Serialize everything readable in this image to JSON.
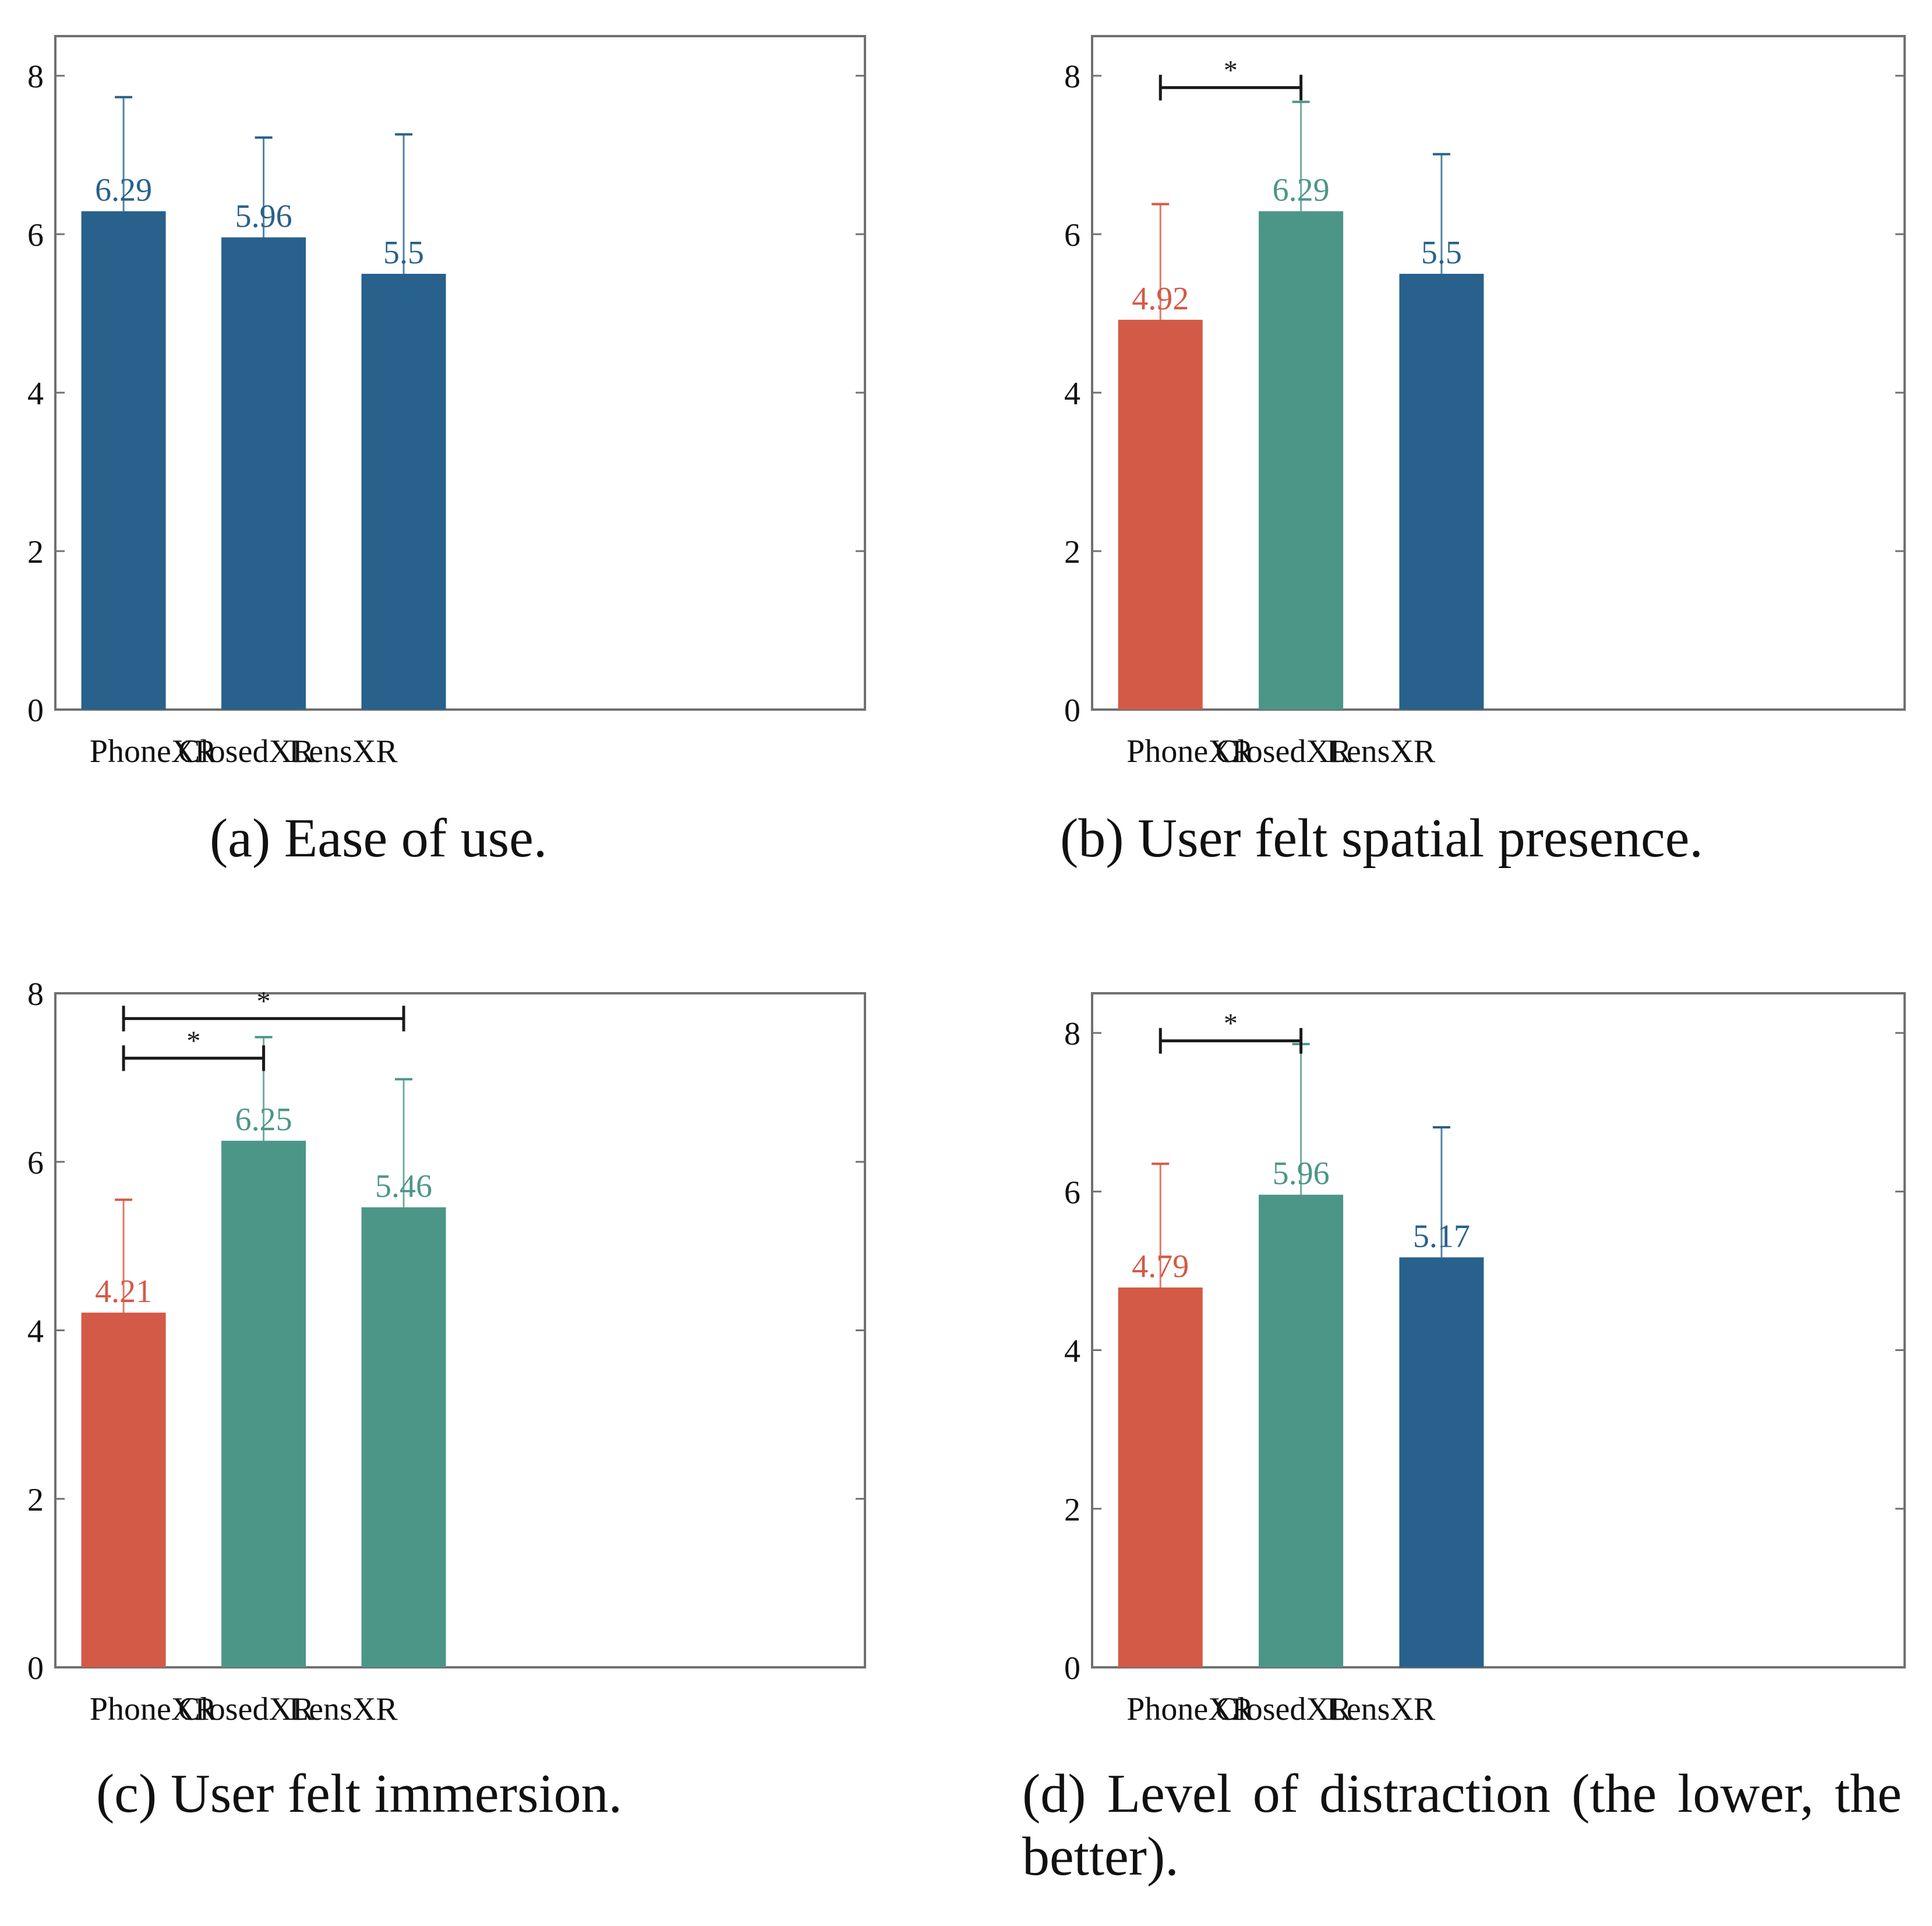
{
  "colors": {
    "phone": "#d35a46",
    "closed": "#4c9688",
    "lens": "#28618c",
    "axis": "#707070",
    "text": "#111111",
    "bracket": "#1a1a1a"
  },
  "chart_data": [
    {
      "id": "a",
      "type": "bar",
      "caption": "(a) Ease of use.",
      "categories": [
        "PhoneXR",
        "ClosedXR",
        "LensXR"
      ],
      "values": [
        6.29,
        5.96,
        5.5
      ],
      "labels": [
        "6.29",
        "5.96",
        "5.5"
      ],
      "errors_upper": [
        7.73,
        7.22,
        7.26
      ],
      "colors": [
        "lens",
        "lens",
        "lens"
      ],
      "ylim": [
        0,
        8.5
      ],
      "yticks": [
        0,
        2,
        4,
        6,
        8
      ],
      "ytick_labels": [
        "0",
        "2",
        "4",
        "6",
        "8"
      ],
      "significance": []
    },
    {
      "id": "b",
      "type": "bar",
      "caption": "(b) User felt spatial presence.",
      "categories": [
        "PhoneXR",
        "ClosedXR",
        "LensXR"
      ],
      "values": [
        4.92,
        6.29,
        5.5
      ],
      "labels": [
        "4.92",
        "6.29",
        "5.5"
      ],
      "errors_upper": [
        6.38,
        7.67,
        7.01
      ],
      "colors": [
        "phone",
        "closed",
        "lens"
      ],
      "ylim": [
        0,
        8.5
      ],
      "yticks": [
        0,
        2,
        4,
        6,
        8
      ],
      "ytick_labels": [
        "0",
        "2",
        "4",
        "6",
        "8"
      ],
      "significance": [
        {
          "from": 0,
          "to": 1,
          "level": 7.85,
          "label": "*"
        }
      ]
    },
    {
      "id": "c",
      "type": "bar",
      "caption": "(c) User felt immersion.",
      "categories": [
        "PhoneXR",
        "ClosedXR",
        "LensXR"
      ],
      "values": [
        4.21,
        6.25,
        5.46
      ],
      "labels": [
        "4.21",
        "6.25",
        "5.46"
      ],
      "errors_upper": [
        5.55,
        7.48,
        6.98
      ],
      "colors": [
        "phone",
        "closed",
        "closed"
      ],
      "ylim": [
        0,
        8
      ],
      "yticks": [
        0,
        2,
        4,
        6,
        8
      ],
      "ytick_labels": [
        "0",
        "2",
        "4",
        "6",
        "8"
      ],
      "significance": [
        {
          "from": 0,
          "to": 2,
          "level": 7.7,
          "label": "*"
        },
        {
          "from": 0,
          "to": 1,
          "level": 7.23,
          "label": "*"
        }
      ]
    },
    {
      "id": "d",
      "type": "bar",
      "caption": "(d) Level of distraction (the lower, the better).",
      "categories": [
        "PhoneXR",
        "ClosedXR",
        "LensXR"
      ],
      "values": [
        4.79,
        5.96,
        5.17
      ],
      "labels": [
        "4.79",
        "5.96",
        "5.17"
      ],
      "errors_upper": [
        6.35,
        7.86,
        6.81
      ],
      "colors": [
        "phone",
        "closed",
        "lens"
      ],
      "ylim": [
        0,
        8.5
      ],
      "yticks": [
        0,
        2,
        4,
        6,
        8
      ],
      "ytick_labels": [
        "0",
        "2",
        "4",
        "6",
        "8"
      ],
      "significance": [
        {
          "from": 0,
          "to": 1,
          "level": 7.9,
          "label": "*"
        }
      ]
    }
  ]
}
